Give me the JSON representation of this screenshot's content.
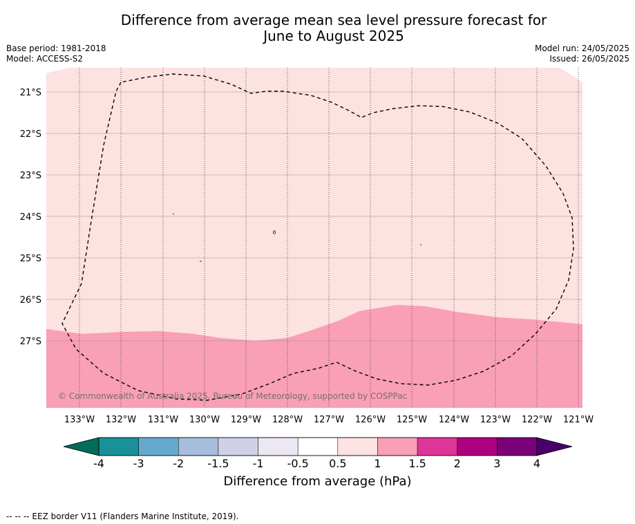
{
  "title_line1": "Difference from average mean sea level pressure forecast for",
  "title_line2": "June to August 2025",
  "base_period": "Base period: 1981-2018",
  "model": "Model: ACCESS-S2",
  "model_run": "Model run: 24/05/2025",
  "issued": "Issued: 26/05/2025",
  "copyright": "© Commonwealth of Australia 2025, Bureau of Meteorology, supported by COSPPac",
  "lat_labels": [
    "21°S",
    "22°S",
    "23°S",
    "24°S",
    "25°S",
    "26°S",
    "27°S"
  ],
  "lon_labels": [
    "133°W",
    "132°W",
    "131°W",
    "130°W",
    "129°W",
    "128°W",
    "127°W",
    "126°W",
    "125°W",
    "124°W",
    "123°W",
    "122°W",
    "121°W"
  ],
  "colorbar": {
    "ticks": [
      "-4",
      "-3",
      "-2",
      "-1.5",
      "-1",
      "-0.5",
      "0.5",
      "1",
      "1.5",
      "2",
      "3",
      "4"
    ],
    "colors": [
      "#1a9098",
      "#66a9cf",
      "#a6bddb",
      "#d0d1e6",
      "#ece7f2",
      "#ffffff",
      "#fce2e0",
      "#f99fb6",
      "#de3597",
      "#ae017e",
      "#7a0177"
    ],
    "low_extend_color": "#016c59",
    "high_extend_color": "#49006a",
    "label": "Difference from average (hPa)"
  },
  "legend_footer": "--  --  -- EEZ border V11 (Flanders Marine Institute, 2019).",
  "colors": {
    "band_0_5_to_1": "#fce2e0",
    "band_1_to_1_5": "#f99fb6"
  }
}
